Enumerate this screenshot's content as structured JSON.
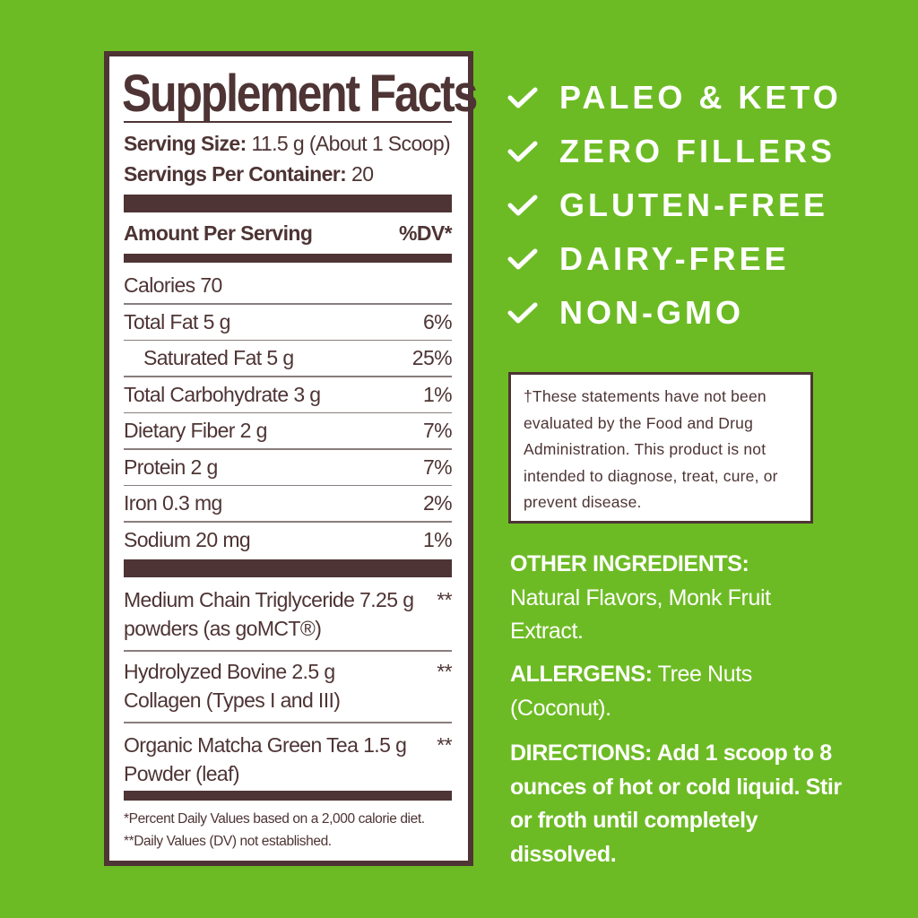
{
  "label": {
    "title": "Supplement Facts",
    "serving_size_label": "Serving Size:",
    "serving_size_value": "11.5 g (About 1 Scoop)",
    "servings_label": "Servings Per Container:",
    "servings_value": "20",
    "amount_header": "Amount Per Serving",
    "dv_header": "%DV*",
    "nutrients": [
      {
        "name": "Calories  70",
        "dv": ""
      },
      {
        "name": "Total Fat  5 g",
        "dv": "6%"
      },
      {
        "name": "Saturated Fat  5 g",
        "dv": "25%"
      },
      {
        "name": "Total Carbohydrate  3 g",
        "dv": "1%"
      },
      {
        "name": "Dietary Fiber 2 g",
        "dv": "7%"
      },
      {
        "name": "Protein  2 g",
        "dv": "7%"
      },
      {
        "name": "Iron  0.3 mg",
        "dv": "2%"
      },
      {
        "name": "Sodium  20 mg",
        "dv": "1%"
      }
    ],
    "ingredients": [
      {
        "line1": "Medium Chain Triglyceride  7.25 g",
        "line2": "powders (as goMCT®)",
        "dv": "**"
      },
      {
        "line1": "Hydrolyzed Bovine  2.5 g",
        "line2": "Collagen (Types I and III)",
        "dv": "**"
      },
      {
        "line1": "Organic Matcha Green Tea  1.5 g",
        "line2": "Powder (leaf)",
        "dv": "**"
      }
    ],
    "footnote1": "*Percent Daily Values based on a 2,000 calorie diet.",
    "footnote2": "**Daily Values (DV) not established."
  },
  "claims": [
    "PALEO & KETO",
    "ZERO FILLERS",
    "GLUTEN-FREE",
    "DAIRY-FREE",
    "NON-GMO"
  ],
  "claim_icon": "checkmark-icon",
  "disclaimer": "†These statements have not been evaluated by the Food and Drug Administration. This product is not intended to diagnose, treat, cure, or prevent disease.",
  "other_ingredients": {
    "label": "OTHER INGREDIENTS:",
    "text": "Natural Flavors, Monk Fruit Extract."
  },
  "allergens": {
    "label": "ALLERGENS:",
    "text": "Tree Nuts (Coconut)."
  },
  "directions": {
    "label": "DIRECTIONS:",
    "text": "Add 1 scoop to 8 ounces of hot or cold liquid. Stir or froth until completely dissolved."
  },
  "colors": {
    "background": "#6dbb24",
    "brown": "#4e3434",
    "white": "#ffffff"
  }
}
